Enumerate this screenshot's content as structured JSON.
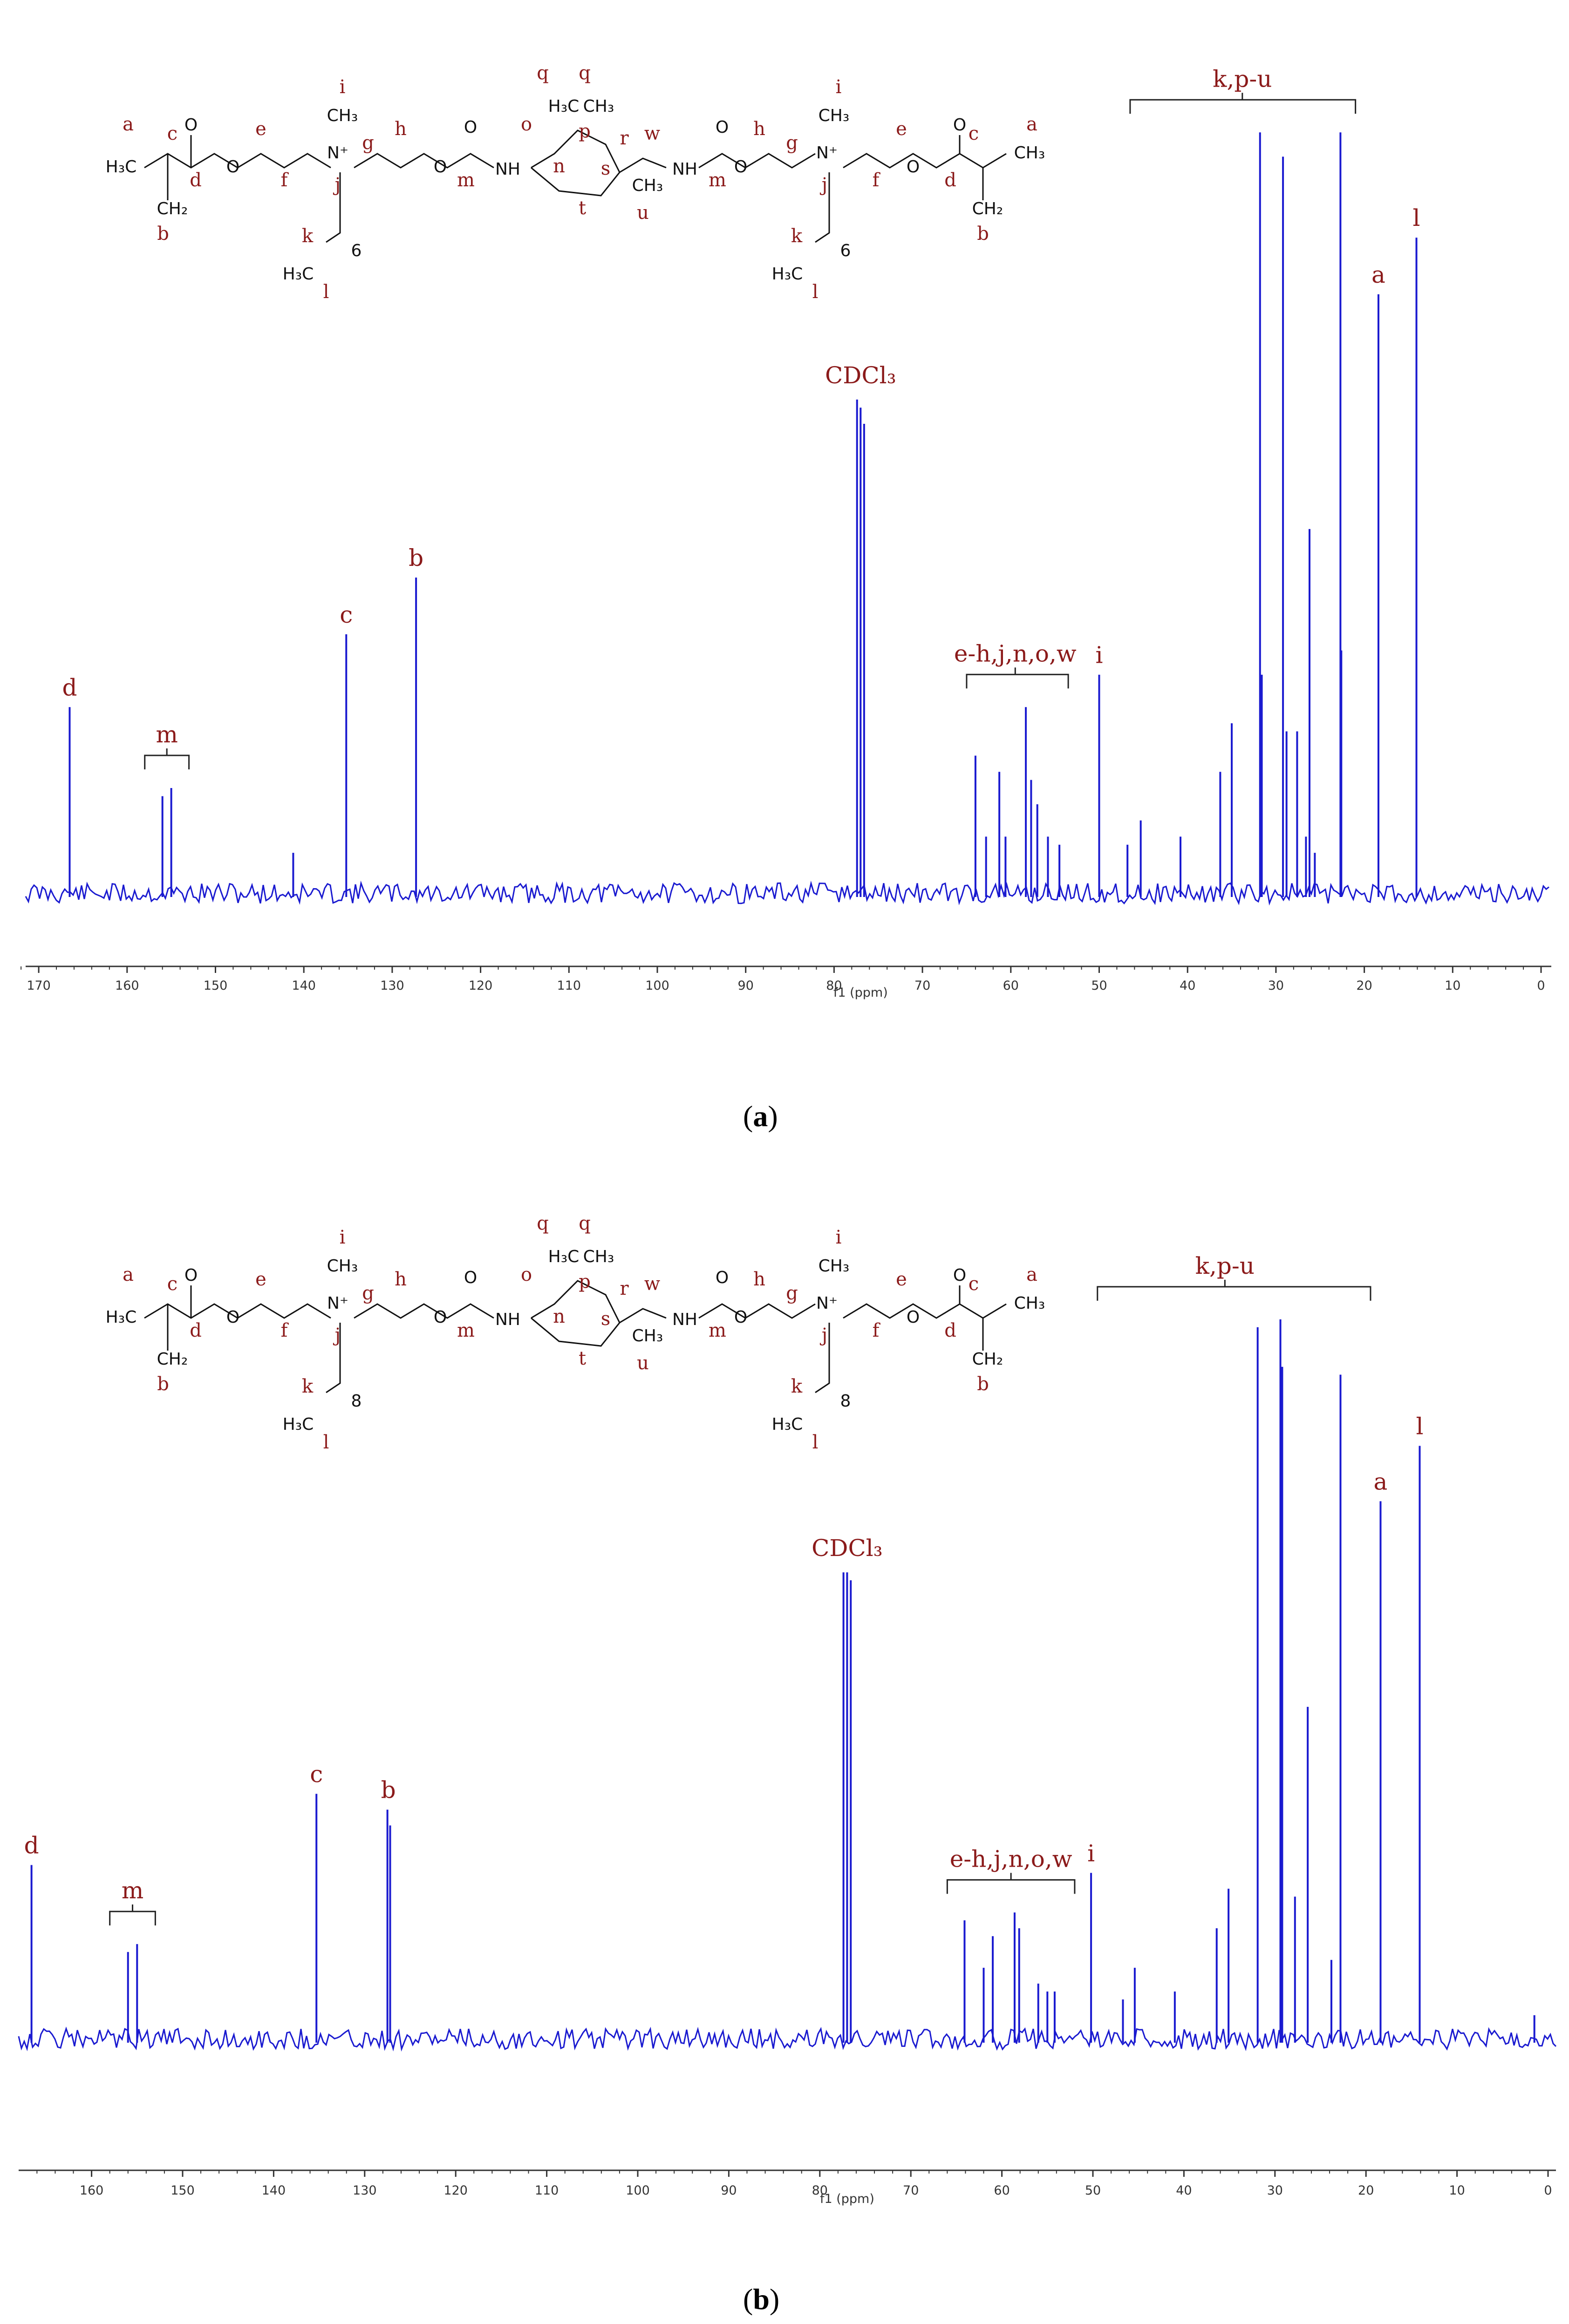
{
  "panel_labels": {
    "a": "a",
    "b": "b"
  },
  "colors": {
    "spectrum": "#1a1ad0",
    "annotation": "#8b1a1a",
    "axis": "#333333",
    "structure": "#111111"
  },
  "chart_data": [
    {
      "type": "line",
      "xlabel": "f1 (ppm)",
      "xlim": [
        172,
        0
      ],
      "x_reversed": true,
      "xticks": [
        170,
        160,
        150,
        140,
        130,
        120,
        110,
        100,
        90,
        80,
        70,
        60,
        50,
        40,
        30,
        20,
        10,
        0
      ],
      "ylim": [
        0,
        1
      ],
      "grid": false,
      "peaks": [
        {
          "x": 166.5,
          "h": 0.23
        },
        {
          "x": 156.0,
          "h": 0.12
        },
        {
          "x": 155.0,
          "h": 0.13
        },
        {
          "x": 141.2,
          "h": 0.05
        },
        {
          "x": 135.2,
          "h": 0.32
        },
        {
          "x": 127.3,
          "h": 0.39
        },
        {
          "x": 77.4,
          "h": 0.61
        },
        {
          "x": 77.0,
          "h": 0.6
        },
        {
          "x": 76.6,
          "h": 0.58
        },
        {
          "x": 64.0,
          "h": 0.17
        },
        {
          "x": 62.8,
          "h": 0.07
        },
        {
          "x": 61.3,
          "h": 0.15
        },
        {
          "x": 60.6,
          "h": 0.07
        },
        {
          "x": 58.3,
          "h": 0.23
        },
        {
          "x": 57.7,
          "h": 0.14
        },
        {
          "x": 57.0,
          "h": 0.11
        },
        {
          "x": 55.8,
          "h": 0.07
        },
        {
          "x": 54.5,
          "h": 0.06
        },
        {
          "x": 50.0,
          "h": 0.27
        },
        {
          "x": 46.8,
          "h": 0.06
        },
        {
          "x": 45.3,
          "h": 0.09
        },
        {
          "x": 40.8,
          "h": 0.07
        },
        {
          "x": 36.3,
          "h": 0.15
        },
        {
          "x": 35.0,
          "h": 0.21
        },
        {
          "x": 31.8,
          "h": 0.94
        },
        {
          "x": 31.6,
          "h": 0.27
        },
        {
          "x": 29.2,
          "h": 0.91
        },
        {
          "x": 28.8,
          "h": 0.2
        },
        {
          "x": 27.6,
          "h": 0.2
        },
        {
          "x": 26.6,
          "h": 0.07
        },
        {
          "x": 26.2,
          "h": 0.45
        },
        {
          "x": 25.6,
          "h": 0.05
        },
        {
          "x": 22.7,
          "h": 0.94
        },
        {
          "x": 22.6,
          "h": 0.3
        },
        {
          "x": 18.4,
          "h": 0.74
        },
        {
          "x": 14.1,
          "h": 0.81
        }
      ],
      "annotations": [
        {
          "text": "d",
          "x": 166.5
        },
        {
          "text": "m",
          "x": 155.5,
          "bracket": [
            158,
            153
          ]
        },
        {
          "text": "c",
          "x": 135.2
        },
        {
          "text": "b",
          "x": 127.3
        },
        {
          "text": "CDCl₃",
          "x": 77.0
        },
        {
          "text": "e-h,j,n,o,w",
          "x": 59.5,
          "bracket": [
            65,
            53.5
          ]
        },
        {
          "text": "i",
          "x": 50.0
        },
        {
          "text": "k,p-u",
          "x": 33.8,
          "bracket": [
            46.5,
            21.0
          ]
        },
        {
          "text": "a",
          "x": 18.4
        },
        {
          "text": "l",
          "x": 14.1
        }
      ],
      "structure": {
        "chain_count": "6"
      }
    },
    {
      "type": "line",
      "xlabel": "f1 (ppm)",
      "xlim": [
        167,
        0
      ],
      "x_reversed": true,
      "xticks": [
        160,
        150,
        140,
        130,
        120,
        110,
        100,
        90,
        80,
        70,
        60,
        50,
        40,
        30,
        20,
        10,
        0
      ],
      "ylim": [
        0,
        1
      ],
      "grid": false,
      "peaks": [
        {
          "x": 166.6,
          "h": 0.22
        },
        {
          "x": 156.0,
          "h": 0.11
        },
        {
          "x": 155.0,
          "h": 0.12
        },
        {
          "x": 135.3,
          "h": 0.31
        },
        {
          "x": 127.5,
          "h": 0.29
        },
        {
          "x": 127.2,
          "h": 0.27
        },
        {
          "x": 77.4,
          "h": 0.59
        },
        {
          "x": 77.0,
          "h": 0.59
        },
        {
          "x": 76.6,
          "h": 0.58
        },
        {
          "x": 64.1,
          "h": 0.15
        },
        {
          "x": 62.0,
          "h": 0.09
        },
        {
          "x": 61.0,
          "h": 0.13
        },
        {
          "x": 58.6,
          "h": 0.16
        },
        {
          "x": 58.1,
          "h": 0.14
        },
        {
          "x": 56.0,
          "h": 0.07
        },
        {
          "x": 55.0,
          "h": 0.06
        },
        {
          "x": 54.2,
          "h": 0.06
        },
        {
          "x": 50.2,
          "h": 0.21
        },
        {
          "x": 46.7,
          "h": 0.05
        },
        {
          "x": 45.4,
          "h": 0.09
        },
        {
          "x": 41.0,
          "h": 0.06
        },
        {
          "x": 36.4,
          "h": 0.14
        },
        {
          "x": 35.1,
          "h": 0.19
        },
        {
          "x": 31.9,
          "h": 0.9
        },
        {
          "x": 29.4,
          "h": 0.91
        },
        {
          "x": 29.2,
          "h": 0.85
        },
        {
          "x": 27.8,
          "h": 0.18
        },
        {
          "x": 26.4,
          "h": 0.42
        },
        {
          "x": 23.8,
          "h": 0.1
        },
        {
          "x": 22.8,
          "h": 0.84
        },
        {
          "x": 18.4,
          "h": 0.68
        },
        {
          "x": 14.1,
          "h": 0.75
        },
        {
          "x": 1.5,
          "h": 0.03
        }
      ],
      "annotations": [
        {
          "text": "d",
          "x": 166.6
        },
        {
          "text": "m",
          "x": 155.5,
          "bracket": [
            158,
            153
          ]
        },
        {
          "text": "c",
          "x": 135.3
        },
        {
          "text": "b",
          "x": 127.4
        },
        {
          "text": "CDCl₃",
          "x": 77.0
        },
        {
          "text": "e-h,j,n,o,w",
          "x": 59.0,
          "bracket": [
            66,
            52
          ]
        },
        {
          "text": "i",
          "x": 50.2
        },
        {
          "text": "k,p-u",
          "x": 35.5,
          "bracket": [
            49.5,
            19.5
          ]
        },
        {
          "text": "a",
          "x": 18.4
        },
        {
          "text": "l",
          "x": 14.1
        }
      ],
      "structure": {
        "chain_count": "8"
      }
    }
  ]
}
